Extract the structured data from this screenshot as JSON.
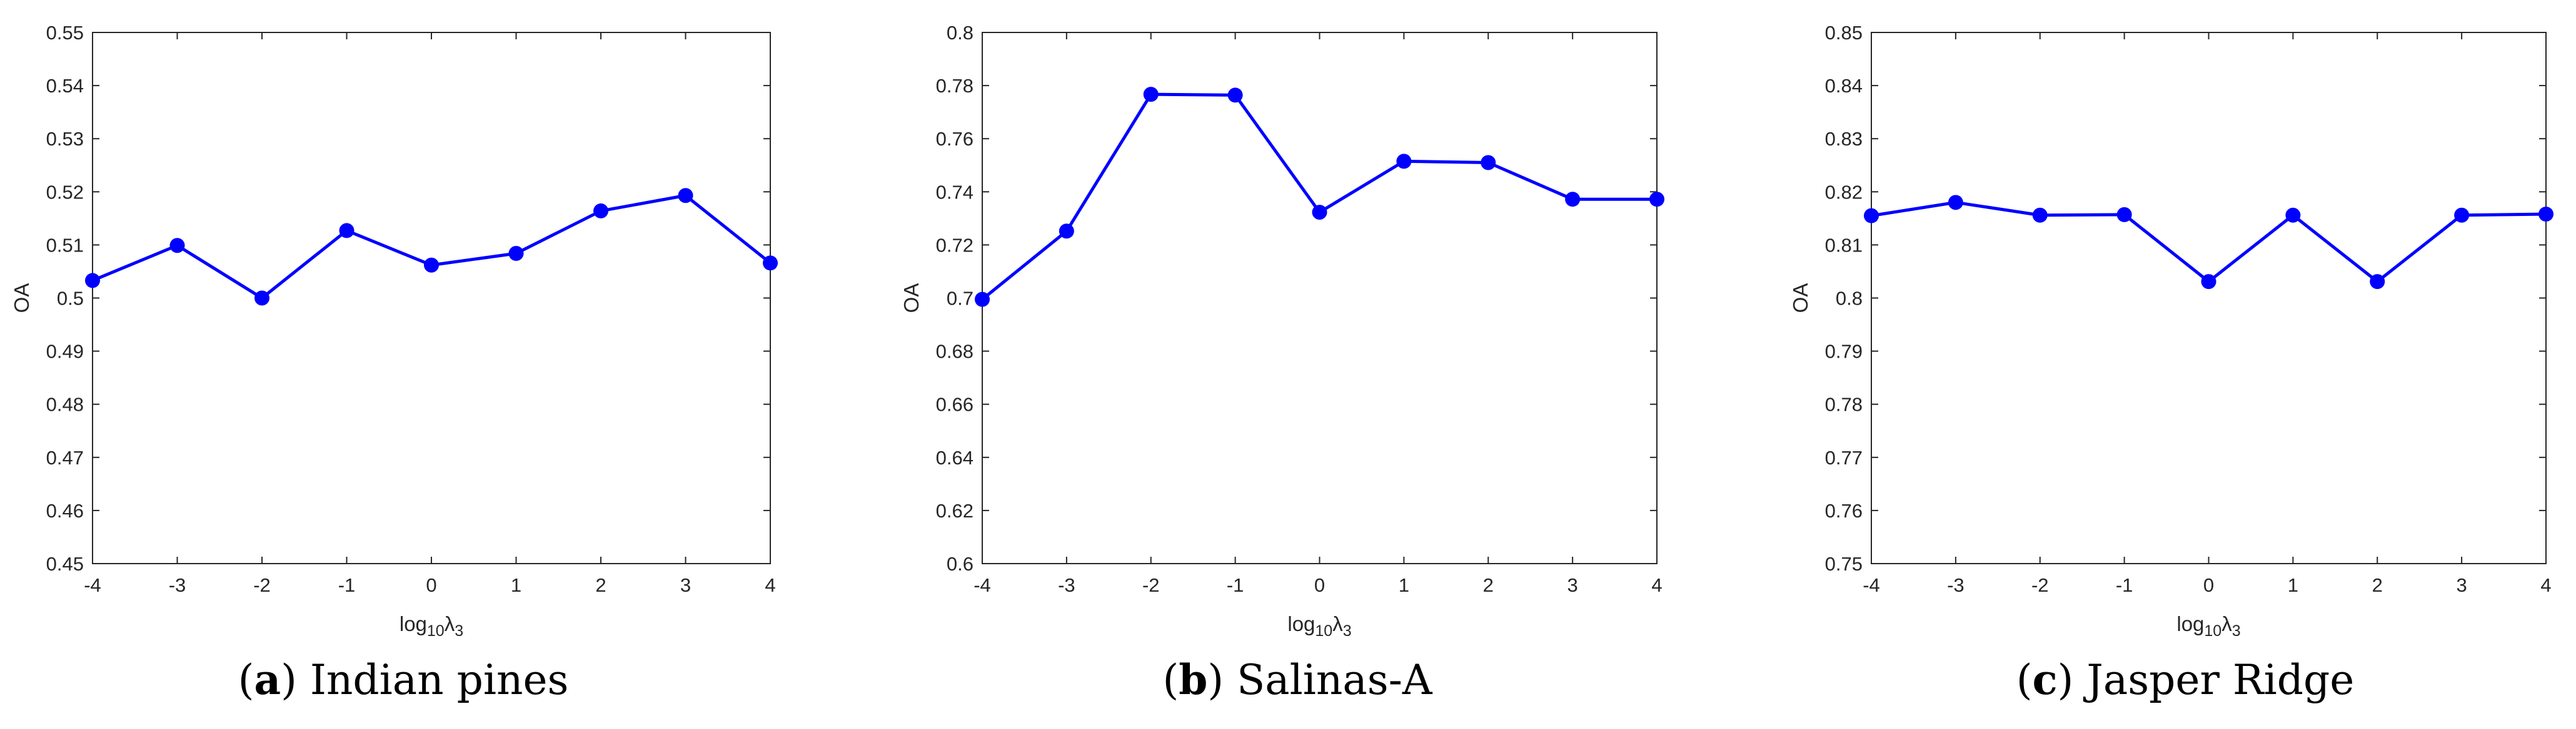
{
  "chart_data": [
    {
      "type": "line",
      "panel_tag": "a",
      "title": "Indian pines",
      "xlabel": "log10λ3",
      "ylabel": "OA",
      "x": [
        -4,
        -3,
        -2,
        -1,
        0,
        1,
        2,
        3,
        4
      ],
      "xlim": [
        -4,
        4
      ],
      "ylim": [
        0.45,
        0.55
      ],
      "yticks": [
        "0.45",
        "0.46",
        "0.47",
        "0.48",
        "0.49",
        "0.5",
        "0.51",
        "0.52",
        "0.53",
        "0.54",
        "0.55"
      ],
      "xticks": [
        "-4",
        "-3",
        "-2",
        "-1",
        "0",
        "1",
        "2",
        "3",
        "4"
      ],
      "series": [
        {
          "name": "OA",
          "color": "#0000ff",
          "values": [
            0.5033,
            0.5099,
            0.5,
            0.5127,
            0.5062,
            0.5084,
            0.5164,
            0.5193,
            0.5066
          ]
        }
      ]
    },
    {
      "type": "line",
      "panel_tag": "b",
      "title": "Salinas-A",
      "xlabel": "log10λ3",
      "ylabel": "OA",
      "x": [
        -4,
        -3,
        -2,
        -1,
        0,
        1,
        2,
        3,
        4
      ],
      "xlim": [
        -4,
        4
      ],
      "ylim": [
        0.6,
        0.8
      ],
      "yticks": [
        "0.6",
        "0.62",
        "0.64",
        "0.66",
        "0.68",
        "0.7",
        "0.72",
        "0.74",
        "0.76",
        "0.78",
        "0.8"
      ],
      "xticks": [
        "-4",
        "-3",
        "-2",
        "-1",
        "0",
        "1",
        "2",
        "3",
        "4"
      ],
      "series": [
        {
          "name": "OA",
          "color": "#0000ff",
          "values": [
            0.6995,
            0.7252,
            0.7767,
            0.7764,
            0.7323,
            0.7515,
            0.751,
            0.7372,
            0.7372
          ]
        }
      ]
    },
    {
      "type": "line",
      "panel_tag": "c",
      "title": "Jasper Ridge",
      "xlabel": "log10λ3",
      "ylabel": "OA",
      "x": [
        -4,
        -3,
        -2,
        -1,
        0,
        1,
        2,
        3,
        4
      ],
      "xlim": [
        -4,
        4
      ],
      "ylim": [
        0.75,
        0.85
      ],
      "yticks": [
        "0.75",
        "0.76",
        "0.77",
        "0.78",
        "0.79",
        "0.8",
        "0.81",
        "0.82",
        "0.83",
        "0.84",
        "0.85"
      ],
      "xticks": [
        "-4",
        "-3",
        "-2",
        "-1",
        "0",
        "1",
        "2",
        "3",
        "4"
      ],
      "series": [
        {
          "name": "OA",
          "color": "#0000ff",
          "values": [
            0.8155,
            0.818,
            0.8156,
            0.8157,
            0.8031,
            0.8156,
            0.8031,
            0.8156,
            0.8158
          ]
        }
      ]
    }
  ]
}
